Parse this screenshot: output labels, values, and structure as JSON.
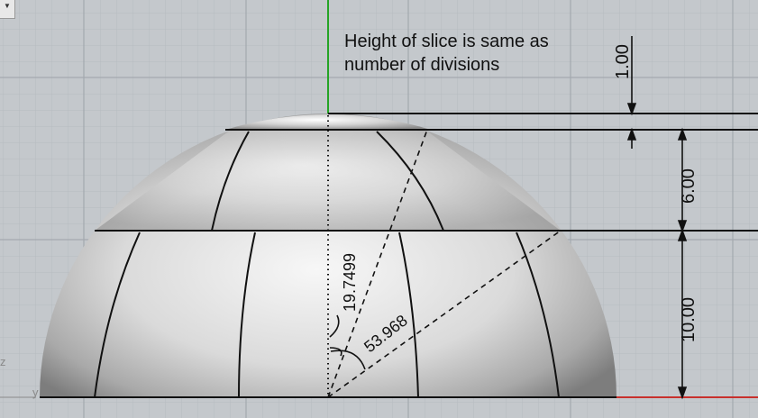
{
  "viewport": {
    "menu_icon": "chevron-down-icon",
    "axis_labels": {
      "z": "z",
      "y": "y"
    }
  },
  "annotations": {
    "note_line1": "Height of slice is same as",
    "note_line2": "number of divisions"
  },
  "dimensions": {
    "top_slice": "1.00",
    "middle_slice": "6.00",
    "bottom_slice": "10.00",
    "angle_small": "19.7499",
    "angle_large": "53.968"
  },
  "colors": {
    "background": "#c4c8cc",
    "grid_minor": "#b6bbc0",
    "grid_major": "#a3a9af",
    "x_axis": "#c8302c",
    "y_axis": "#25a425",
    "linework": "#111111"
  }
}
